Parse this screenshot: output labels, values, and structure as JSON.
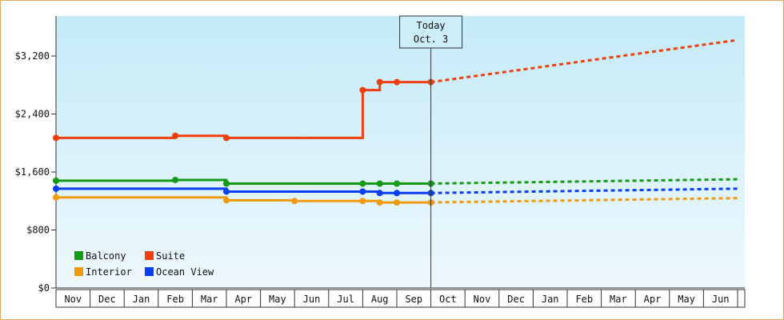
{
  "chart_data": {
    "type": "line",
    "title": "",
    "xlabel": "",
    "ylabel": "",
    "x_ticks": [
      "Nov",
      "Dec",
      "Jan",
      "Feb",
      "Mar",
      "Apr",
      "May",
      "Jun",
      "Jul",
      "Aug",
      "Sep",
      "Oct",
      "Nov",
      "Dec",
      "Jan",
      "Feb",
      "Mar",
      "Apr",
      "May",
      "Jun"
    ],
    "y_ticks": [
      "$0",
      "$800",
      "$1,600",
      "$2,400",
      "$3,200"
    ],
    "ylim": [
      0,
      3200
    ],
    "legend_position": "bottom-left",
    "today_marker": {
      "line1": "Today",
      "line2": "Oct. 3",
      "x": 11.0
    },
    "series": [
      {
        "name": "Balcony",
        "color": "#139c13",
        "steps": [
          [
            0,
            1480
          ],
          [
            3.5,
            1490
          ],
          [
            5,
            1440
          ],
          [
            9,
            1440
          ],
          [
            9.5,
            1440
          ],
          [
            10,
            1440
          ]
        ],
        "end": 11.0,
        "forecast": [
          [
            11.0,
            1440
          ],
          [
            20.0,
            1500
          ]
        ]
      },
      {
        "name": "Suite",
        "color": "#f03e0c",
        "steps": [
          [
            0,
            2070
          ],
          [
            3.5,
            2100
          ],
          [
            5,
            2070
          ],
          [
            9,
            2730
          ],
          [
            9.5,
            2840
          ],
          [
            10,
            2840
          ]
        ],
        "end": 11.0,
        "forecast": [
          [
            11.0,
            2840
          ],
          [
            20.0,
            3420
          ]
        ]
      },
      {
        "name": "Interior",
        "color": "#f29a0d",
        "steps": [
          [
            0,
            1250
          ],
          [
            5,
            1210
          ],
          [
            7,
            1200
          ],
          [
            9,
            1200
          ],
          [
            9.5,
            1180
          ],
          [
            10,
            1180
          ]
        ],
        "end": 11.0,
        "forecast": [
          [
            11.0,
            1180
          ],
          [
            20.0,
            1240
          ]
        ]
      },
      {
        "name": "Ocean View",
        "color": "#0a3ef3",
        "steps": [
          [
            0,
            1370
          ],
          [
            5,
            1330
          ],
          [
            9,
            1330
          ],
          [
            9.5,
            1310
          ],
          [
            10,
            1310
          ]
        ],
        "end": 11.0,
        "forecast": [
          [
            11.0,
            1310
          ],
          [
            20.0,
            1370
          ]
        ]
      }
    ]
  }
}
